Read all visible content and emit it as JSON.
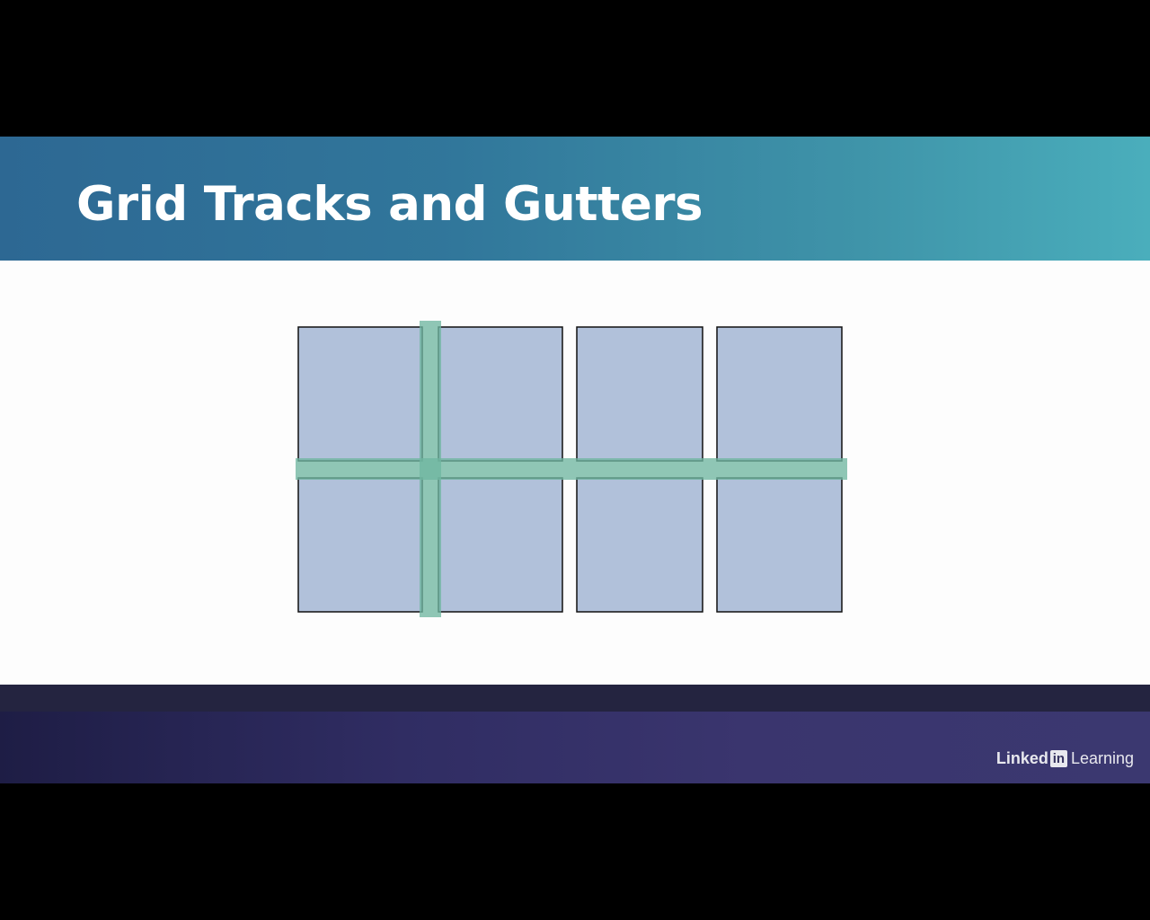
{
  "slide": {
    "title": "Grid Tracks and Gutters"
  },
  "diagram": {
    "columns": 4,
    "rows": 2,
    "highlighted_tracks": [
      "row-gutter",
      "column-gutter"
    ],
    "colors": {
      "cell_fill": "#b1c1da",
      "cell_border": "#111111",
      "gutter_highlight": "#6fb6a0",
      "background": "#fdfdfd"
    }
  },
  "brand": {
    "linked": "Linked",
    "in": "in",
    "learning": "Learning"
  },
  "colors": {
    "title_banner_start": "#2d6893",
    "title_banner_end": "#4aaebc",
    "footer_start": "#1e1d45",
    "footer_end": "#3b3870"
  }
}
